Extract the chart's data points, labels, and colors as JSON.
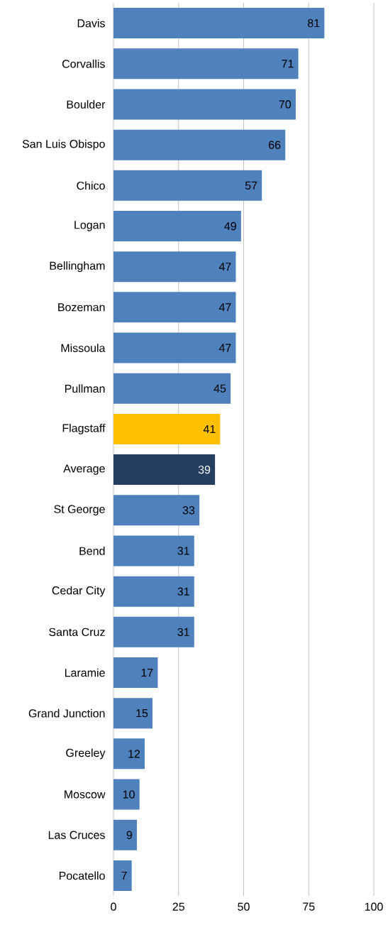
{
  "chart_data": {
    "type": "bar",
    "orientation": "horizontal",
    "categories": [
      "Davis",
      "Corvallis",
      "Boulder",
      "San Luis Obispo",
      "Chico",
      "Logan",
      "Bellingham",
      "Bozeman",
      "Missoula",
      "Pullman",
      "Flagstaff",
      "Average",
      "St George",
      "Bend",
      "Cedar City",
      "Santa Cruz",
      "Laramie",
      "Grand Junction",
      "Greeley",
      "Moscow",
      "Las Cruces",
      "Pocatello"
    ],
    "values": [
      81,
      71,
      70,
      66,
      57,
      49,
      47,
      47,
      47,
      45,
      41,
      39,
      33,
      31,
      31,
      31,
      17,
      15,
      12,
      10,
      9,
      7
    ],
    "colors": [
      "#4f81bd",
      "#4f81bd",
      "#4f81bd",
      "#4f81bd",
      "#4f81bd",
      "#4f81bd",
      "#4f81bd",
      "#4f81bd",
      "#4f81bd",
      "#4f81bd",
      "#ffc000",
      "#243f60",
      "#4f81bd",
      "#4f81bd",
      "#4f81bd",
      "#4f81bd",
      "#4f81bd",
      "#4f81bd",
      "#4f81bd",
      "#4f81bd",
      "#4f81bd",
      "#4f81bd"
    ],
    "xlim": [
      0,
      100
    ],
    "xticks": [
      0,
      25,
      50,
      75,
      100
    ],
    "grid": "x",
    "data_labels": true
  }
}
